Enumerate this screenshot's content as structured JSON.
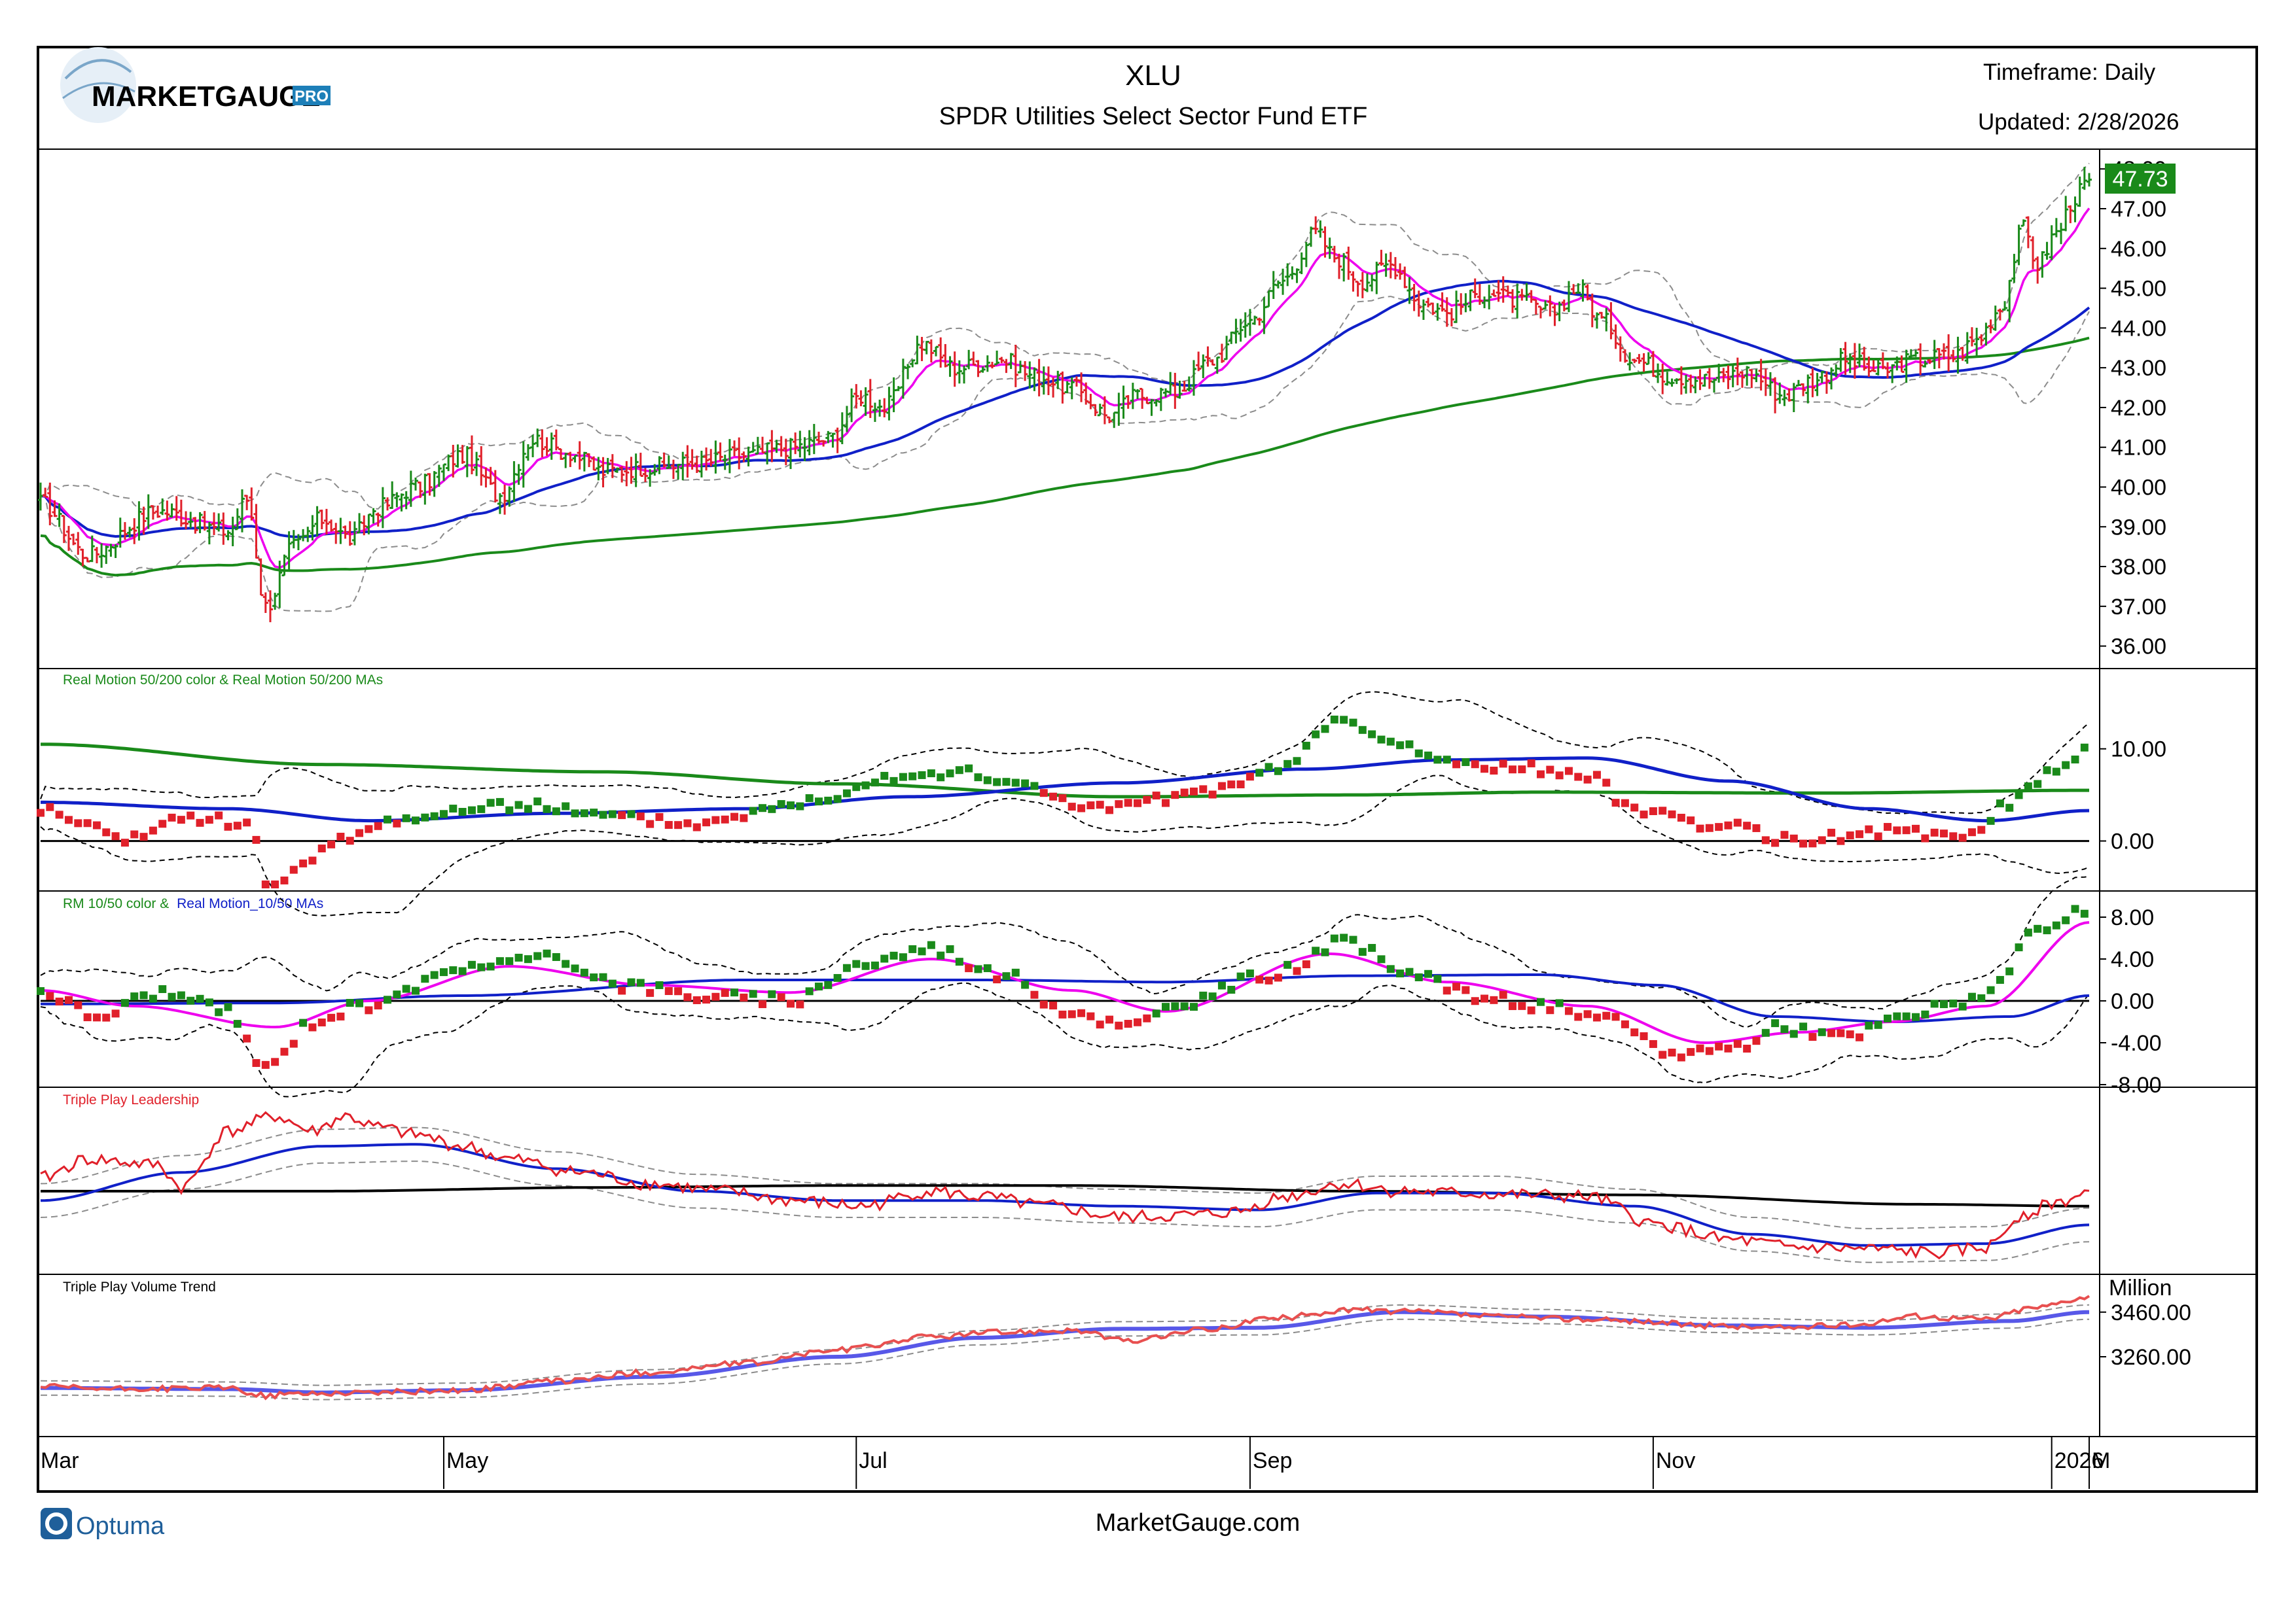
{
  "header": {
    "logo_text": "MARKETGAUGE",
    "logo_badge": "PRO",
    "symbol": "XLU",
    "fund_name": "SPDR Utilities Select Sector Fund ETF",
    "timeframe": "Timeframe: Daily",
    "updated": "Updated: 2/28/2026"
  },
  "footer": {
    "brand": "Optuma",
    "site": "MarketGauge.com"
  },
  "colors": {
    "up": "#1a8a1a",
    "down": "#e0202a",
    "ma_fast": "#ee00ee",
    "ma_mid": "#1020c8",
    "ma_slow": "#1a8a1a",
    "band": "#8c8c8c",
    "last_price_bg": "#1a8a1a"
  },
  "x_axis": {
    "months": [
      "Mar",
      "May",
      "Jul",
      "Sep",
      "Nov",
      "2026",
      "M"
    ]
  },
  "chart_data": [
    {
      "type": "candlestick",
      "panel": "price",
      "last_price": "47.73",
      "y_ticks": [
        "36.00",
        "37.00",
        "38.00",
        "39.00",
        "40.00",
        "41.00",
        "42.00",
        "43.00",
        "44.00",
        "45.00",
        "46.00",
        "47.00",
        "48.00"
      ],
      "ylim": [
        35.5,
        48.3
      ],
      "close_anchors": [
        [
          0,
          39.6
        ],
        [
          10,
          38.3
        ],
        [
          25,
          39.4
        ],
        [
          40,
          38.9
        ],
        [
          44,
          39.7
        ],
        [
          48,
          37.0
        ],
        [
          54,
          38.5
        ],
        [
          60,
          39.2
        ],
        [
          66,
          38.7
        ],
        [
          72,
          39.5
        ],
        [
          80,
          40.0
        ],
        [
          90,
          40.8
        ],
        [
          98,
          39.8
        ],
        [
          105,
          41.2
        ],
        [
          112,
          40.9
        ],
        [
          120,
          40.4
        ],
        [
          130,
          40.5
        ],
        [
          140,
          40.6
        ],
        [
          150,
          40.8
        ],
        [
          160,
          41.0
        ],
        [
          168,
          41.2
        ],
        [
          175,
          42.3
        ],
        [
          180,
          42.0
        ],
        [
          188,
          43.6
        ],
        [
          195,
          43.0
        ],
        [
          205,
          43.2
        ],
        [
          212,
          42.8
        ],
        [
          220,
          42.5
        ],
        [
          228,
          41.8
        ],
        [
          234,
          42.3
        ],
        [
          242,
          42.4
        ],
        [
          250,
          43.2
        ],
        [
          258,
          44.2
        ],
        [
          265,
          45.2
        ],
        [
          272,
          46.4
        ],
        [
          276,
          45.8
        ],
        [
          282,
          45.2
        ],
        [
          288,
          45.6
        ],
        [
          295,
          44.6
        ],
        [
          300,
          44.4
        ],
        [
          308,
          44.9
        ],
        [
          315,
          44.7
        ],
        [
          322,
          44.4
        ],
        [
          328,
          45.0
        ],
        [
          333,
          44.2
        ],
        [
          340,
          43.2
        ],
        [
          348,
          42.8
        ],
        [
          356,
          42.7
        ],
        [
          364,
          42.9
        ],
        [
          372,
          42.3
        ],
        [
          378,
          42.7
        ],
        [
          385,
          43.2
        ],
        [
          392,
          42.9
        ],
        [
          400,
          43.2
        ],
        [
          408,
          43.3
        ],
        [
          413,
          43.7
        ],
        [
          418,
          44.5
        ],
        [
          423,
          46.5
        ],
        [
          426,
          45.6
        ],
        [
          430,
          46.4
        ],
        [
          434,
          47.3
        ],
        [
          437,
          47.73
        ]
      ]
    },
    {
      "type": "scatter",
      "panel": "Real Motion 50/200",
      "title": "Real Motion 50/200 color & Real Motion 50/200 MAs",
      "y_ticks": [
        "0.00",
        "10.00"
      ],
      "ylim": [
        -5,
        18
      ],
      "anchors": [
        [
          0,
          3.5
        ],
        [
          8,
          2.0
        ],
        [
          18,
          0.0
        ],
        [
          30,
          2.5
        ],
        [
          45,
          2.0
        ],
        [
          48,
          -6.0
        ],
        [
          55,
          -3.0
        ],
        [
          65,
          0.5
        ],
        [
          78,
          2.5
        ],
        [
          90,
          3.3
        ],
        [
          105,
          4.0
        ],
        [
          118,
          2.8
        ],
        [
          130,
          2.3
        ],
        [
          140,
          1.8
        ],
        [
          150,
          3.0
        ],
        [
          165,
          4.4
        ],
        [
          180,
          7.0
        ],
        [
          195,
          7.5
        ],
        [
          210,
          6.0
        ],
        [
          225,
          3.5
        ],
        [
          240,
          4.5
        ],
        [
          255,
          6.0
        ],
        [
          265,
          8.0
        ],
        [
          276,
          13.0
        ],
        [
          290,
          10.5
        ],
        [
          300,
          8.5
        ],
        [
          315,
          8.0
        ],
        [
          330,
          7.0
        ],
        [
          340,
          3.5
        ],
        [
          360,
          1.5
        ],
        [
          375,
          0.0
        ],
        [
          392,
          1.0
        ],
        [
          410,
          0.5
        ],
        [
          420,
          4.0
        ],
        [
          430,
          8.0
        ],
        [
          437,
          10.0
        ]
      ],
      "ma200_anchors": [
        [
          0,
          10.5
        ],
        [
          60,
          8.3
        ],
        [
          120,
          7.5
        ],
        [
          170,
          6.2
        ],
        [
          230,
          4.8
        ],
        [
          280,
          5.0
        ],
        [
          320,
          5.3
        ],
        [
          380,
          5.2
        ],
        [
          437,
          5.5
        ]
      ],
      "ma50_anchors": [
        [
          0,
          4.2
        ],
        [
          40,
          3.5
        ],
        [
          70,
          2.2
        ],
        [
          110,
          3.0
        ],
        [
          150,
          3.5
        ],
        [
          185,
          4.8
        ],
        [
          230,
          6.3
        ],
        [
          270,
          7.8
        ],
        [
          300,
          8.8
        ],
        [
          330,
          9.0
        ],
        [
          360,
          6.5
        ],
        [
          390,
          3.5
        ],
        [
          415,
          2.2
        ],
        [
          437,
          3.3
        ]
      ]
    },
    {
      "type": "scatter",
      "panel": "RM 10/50",
      "title_part1": "RM 10/50 color &",
      "title_part2": "Real Motion_10/50 MAs",
      "y_ticks": [
        "-8.00",
        "-4.00",
        "0.00",
        "4.00",
        "8.00"
      ],
      "ylim": [
        -8,
        10
      ],
      "anchors": [
        [
          0,
          1.0
        ],
        [
          12,
          -1.5
        ],
        [
          25,
          0.8
        ],
        [
          40,
          -1.0
        ],
        [
          48,
          -6.5
        ],
        [
          58,
          -2.0
        ],
        [
          68,
          -0.5
        ],
        [
          80,
          1.5
        ],
        [
          92,
          3.5
        ],
        [
          110,
          4.0
        ],
        [
          125,
          1.5
        ],
        [
          140,
          0.5
        ],
        [
          160,
          0.0
        ],
        [
          175,
          3.5
        ],
        [
          190,
          5.0
        ],
        [
          205,
          2.5
        ],
        [
          220,
          -1.0
        ],
        [
          232,
          -2.5
        ],
        [
          245,
          0.0
        ],
        [
          262,
          2.5
        ],
        [
          278,
          5.5
        ],
        [
          292,
          3.0
        ],
        [
          305,
          0.5
        ],
        [
          320,
          -0.5
        ],
        [
          335,
          -2.0
        ],
        [
          348,
          -5.0
        ],
        [
          360,
          -4.5
        ],
        [
          372,
          -2.5
        ],
        [
          385,
          -3.5
        ],
        [
          398,
          -1.5
        ],
        [
          410,
          0.0
        ],
        [
          418,
          1.5
        ],
        [
          425,
          6.5
        ],
        [
          437,
          8.5
        ]
      ],
      "ma10_anchors": [
        [
          0,
          1.0
        ],
        [
          20,
          -0.5
        ],
        [
          50,
          -2.5
        ],
        [
          70,
          0.0
        ],
        [
          100,
          3.3
        ],
        [
          130,
          1.5
        ],
        [
          160,
          0.8
        ],
        [
          190,
          4.0
        ],
        [
          220,
          1.0
        ],
        [
          240,
          -1.0
        ],
        [
          275,
          4.5
        ],
        [
          300,
          1.8
        ],
        [
          330,
          -0.5
        ],
        [
          355,
          -4.0
        ],
        [
          375,
          -3.0
        ],
        [
          395,
          -2.0
        ],
        [
          415,
          -0.5
        ],
        [
          437,
          7.5
        ]
      ],
      "ma50_anchors": [
        [
          0,
          -0.3
        ],
        [
          50,
          -0.2
        ],
        [
          90,
          0.5
        ],
        [
          150,
          2.0
        ],
        [
          200,
          2.0
        ],
        [
          240,
          1.8
        ],
        [
          280,
          2.4
        ],
        [
          320,
          2.5
        ],
        [
          345,
          1.5
        ],
        [
          370,
          -1.5
        ],
        [
          395,
          -2.0
        ],
        [
          420,
          -1.5
        ],
        [
          437,
          0.5
        ]
      ]
    },
    {
      "type": "line",
      "panel": "Triple Play Leadership",
      "title": "Triple Play Leadership",
      "anchors": [
        [
          0,
          45
        ],
        [
          10,
          55
        ],
        [
          25,
          52
        ],
        [
          30,
          40
        ],
        [
          40,
          70
        ],
        [
          50,
          78
        ],
        [
          58,
          70
        ],
        [
          65,
          78
        ],
        [
          72,
          72
        ],
        [
          80,
          68
        ],
        [
          90,
          62
        ],
        [
          100,
          55
        ],
        [
          115,
          48
        ],
        [
          130,
          42
        ],
        [
          145,
          38
        ],
        [
          160,
          33
        ],
        [
          175,
          30
        ],
        [
          190,
          38
        ],
        [
          200,
          35
        ],
        [
          215,
          30
        ],
        [
          230,
          24
        ],
        [
          245,
          25
        ],
        [
          255,
          27
        ],
        [
          265,
          35
        ],
        [
          278,
          42
        ],
        [
          290,
          38
        ],
        [
          300,
          37
        ],
        [
          315,
          36
        ],
        [
          330,
          35
        ],
        [
          345,
          20
        ],
        [
          360,
          12
        ],
        [
          375,
          8
        ],
        [
          390,
          7
        ],
        [
          405,
          5
        ],
        [
          415,
          8
        ],
        [
          423,
          26
        ],
        [
          430,
          32
        ],
        [
          437,
          37
        ]
      ],
      "ma_mid_anchors": [
        [
          0,
          33
        ],
        [
          30,
          48
        ],
        [
          60,
          62
        ],
        [
          80,
          63
        ],
        [
          110,
          50
        ],
        [
          140,
          38
        ],
        [
          170,
          33
        ],
        [
          200,
          33
        ],
        [
          230,
          30
        ],
        [
          260,
          28
        ],
        [
          285,
          37
        ],
        [
          310,
          37
        ],
        [
          340,
          30
        ],
        [
          365,
          15
        ],
        [
          390,
          9
        ],
        [
          415,
          10
        ],
        [
          437,
          20
        ]
      ],
      "ma_slow_anchors": [
        [
          0,
          38
        ],
        [
          60,
          38
        ],
        [
          120,
          40
        ],
        [
          170,
          41
        ],
        [
          220,
          41
        ],
        [
          280,
          38
        ],
        [
          340,
          36
        ],
        [
          400,
          31
        ],
        [
          437,
          30
        ]
      ]
    },
    {
      "type": "line",
      "panel": "Triple Play Volume Trend",
      "title": "Triple Play Volume Trend",
      "unit": "Million",
      "y_ticks": [
        "3260.00",
        "3460.00"
      ],
      "ylim": [
        2920,
        3600
      ],
      "anchors": [
        [
          0,
          3125
        ],
        [
          15,
          3115
        ],
        [
          40,
          3120
        ],
        [
          48,
          3085
        ],
        [
          55,
          3095
        ],
        [
          70,
          3100
        ],
        [
          90,
          3110
        ],
        [
          110,
          3150
        ],
        [
          130,
          3190
        ],
        [
          150,
          3230
        ],
        [
          170,
          3290
        ],
        [
          190,
          3350
        ],
        [
          205,
          3370
        ],
        [
          220,
          3380
        ],
        [
          232,
          3330
        ],
        [
          248,
          3380
        ],
        [
          262,
          3430
        ],
        [
          280,
          3470
        ],
        [
          295,
          3460
        ],
        [
          310,
          3440
        ],
        [
          325,
          3430
        ],
        [
          340,
          3420
        ],
        [
          355,
          3400
        ],
        [
          370,
          3390
        ],
        [
          385,
          3400
        ],
        [
          400,
          3440
        ],
        [
          415,
          3430
        ],
        [
          425,
          3480
        ],
        [
          437,
          3530
        ]
      ],
      "ma_anchors": [
        [
          0,
          3120
        ],
        [
          40,
          3115
        ],
        [
          60,
          3100
        ],
        [
          90,
          3110
        ],
        [
          130,
          3170
        ],
        [
          170,
          3260
        ],
        [
          200,
          3345
        ],
        [
          230,
          3385
        ],
        [
          260,
          3390
        ],
        [
          290,
          3460
        ],
        [
          320,
          3440
        ],
        [
          360,
          3400
        ],
        [
          390,
          3390
        ],
        [
          420,
          3420
        ],
        [
          437,
          3460
        ]
      ]
    }
  ]
}
